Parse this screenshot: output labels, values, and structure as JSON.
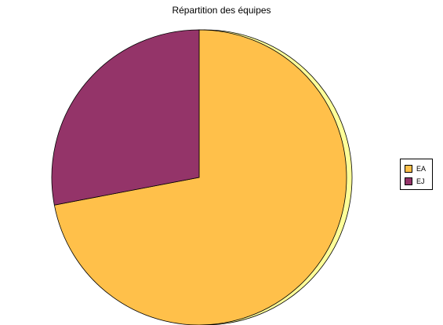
{
  "chart_data": {
    "type": "pie",
    "title": "Répartition des équipes",
    "categories": [
      "EA",
      "EJ"
    ],
    "values": [
      72,
      28
    ],
    "colors": [
      "#FFC04A",
      "#943469"
    ],
    "side_colors": [
      "#FFFF99",
      "#C460A0"
    ],
    "legend_placement": "right"
  }
}
